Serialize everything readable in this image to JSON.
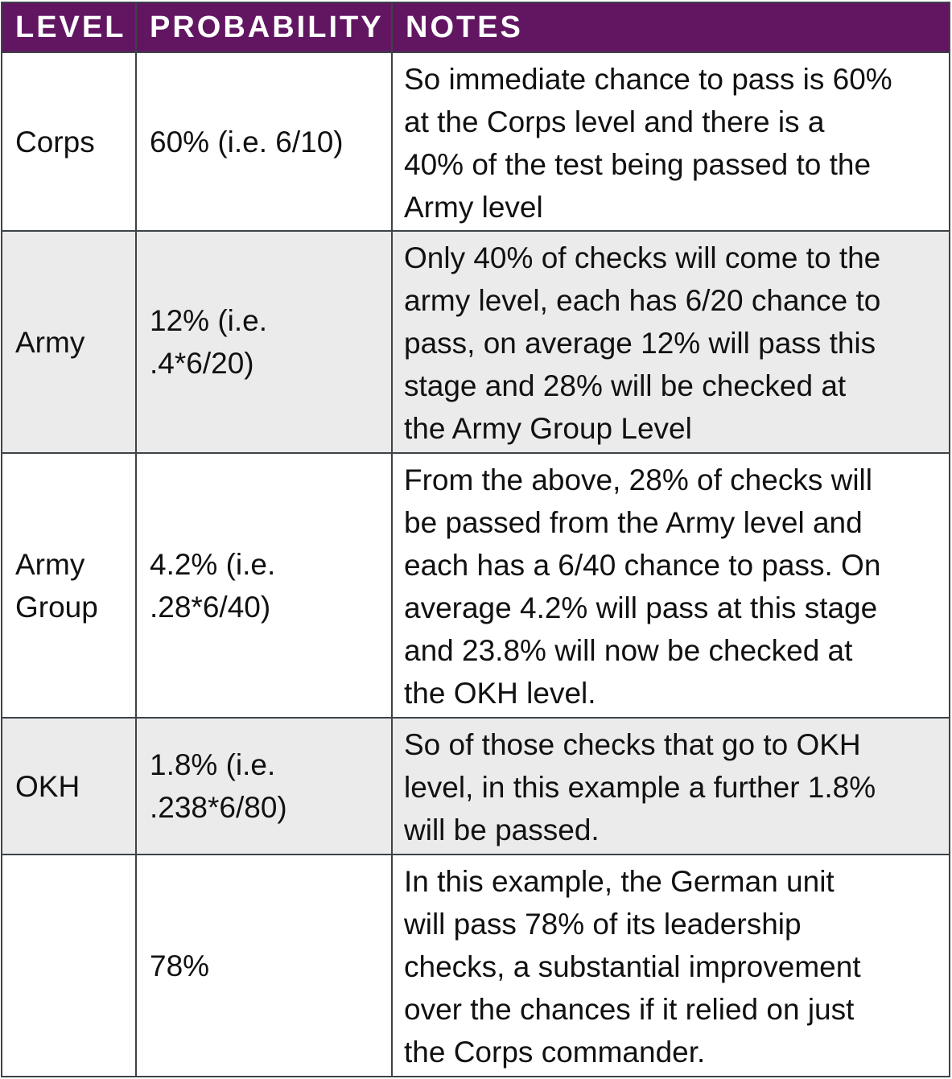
{
  "headers": {
    "level": "LEVEL",
    "probability": "PROBABILITY",
    "notes": "NOTES"
  },
  "colors": {
    "header_bg": "#621662",
    "shade_bg": "#ebebeb",
    "border": "#3d4347"
  },
  "rows": [
    {
      "level": [
        "Corps"
      ],
      "probability": [
        "60% (i.e. 6/10)"
      ],
      "notes": [
        "So immediate chance to pass is 60%",
        "at the Corps level and there is a",
        "40% of the test being passed to the",
        "Army level"
      ]
    },
    {
      "level": [
        "Army"
      ],
      "probability": [
        "12% (i.e.",
        ".4*6/20)"
      ],
      "notes": [
        "Only 40% of checks will come to the",
        "army level, each has 6/20 chance to",
        "pass, on average 12% will pass this",
        "stage and 28% will be checked at",
        "the Army Group Level"
      ]
    },
    {
      "level": [
        "Army",
        "Group"
      ],
      "probability": [
        "4.2% (i.e.",
        ".28*6/40)"
      ],
      "notes": [
        "From the above, 28% of checks will",
        "be passed from the Army level and",
        "each has a 6/40 chance to pass. On",
        "average 4.2% will pass at this stage",
        "and 23.8% will now be checked at",
        "the OKH level."
      ]
    },
    {
      "level": [
        "OKH"
      ],
      "probability": [
        "1.8% (i.e.",
        ".238*6/80)"
      ],
      "notes": [
        "So of those checks that go to OKH",
        "level, in this example a further 1.8%",
        "will be passed."
      ]
    },
    {
      "level": [],
      "probability": [
        "78%"
      ],
      "notes": [
        "In this example, the German unit",
        "will pass 78% of its leadership",
        "checks, a substantial improvement",
        "over the chances if it relied on just",
        "the Corps commander."
      ]
    }
  ]
}
